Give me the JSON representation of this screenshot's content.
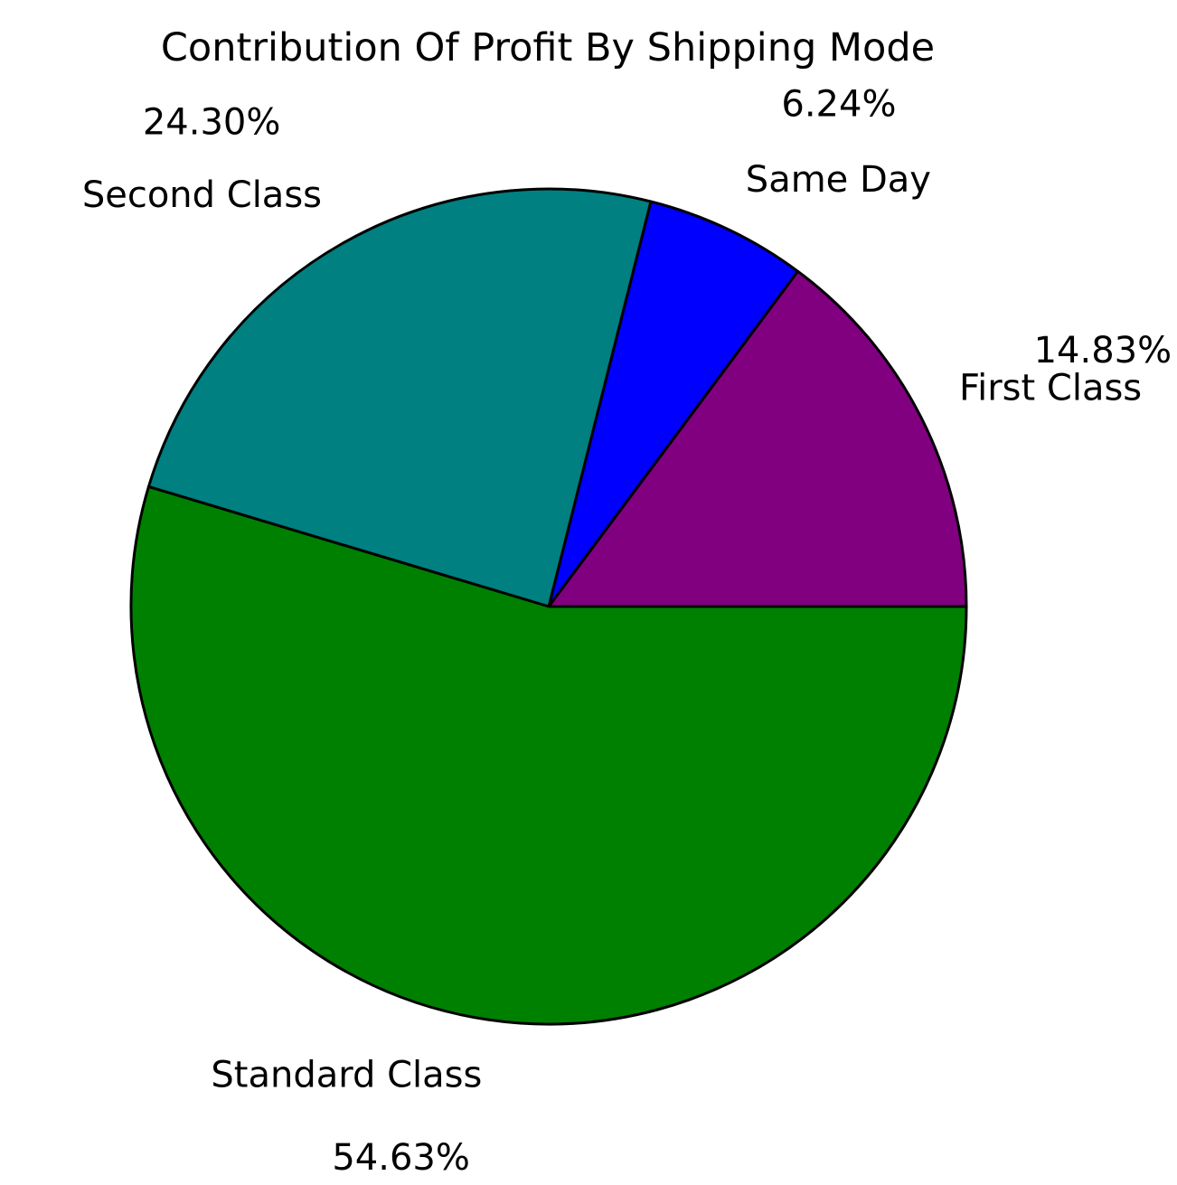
{
  "chart_data": {
    "type": "pie",
    "title": "Contribution Of Profit By Shipping Mode",
    "categories": [
      "First Class",
      "Same Day",
      "Second Class",
      "Standard Class"
    ],
    "values": [
      14.83,
      6.24,
      24.3,
      54.63
    ],
    "percent_labels": [
      "14.83%",
      "6.24%",
      "24.30%",
      "54.63%"
    ],
    "colors": [
      "#800080",
      "#0000ff",
      "#008080",
      "#008000"
    ],
    "edge_color": "#000000",
    "start_angle_deg": 0,
    "direction": "counterclockwise",
    "legend": "none"
  }
}
